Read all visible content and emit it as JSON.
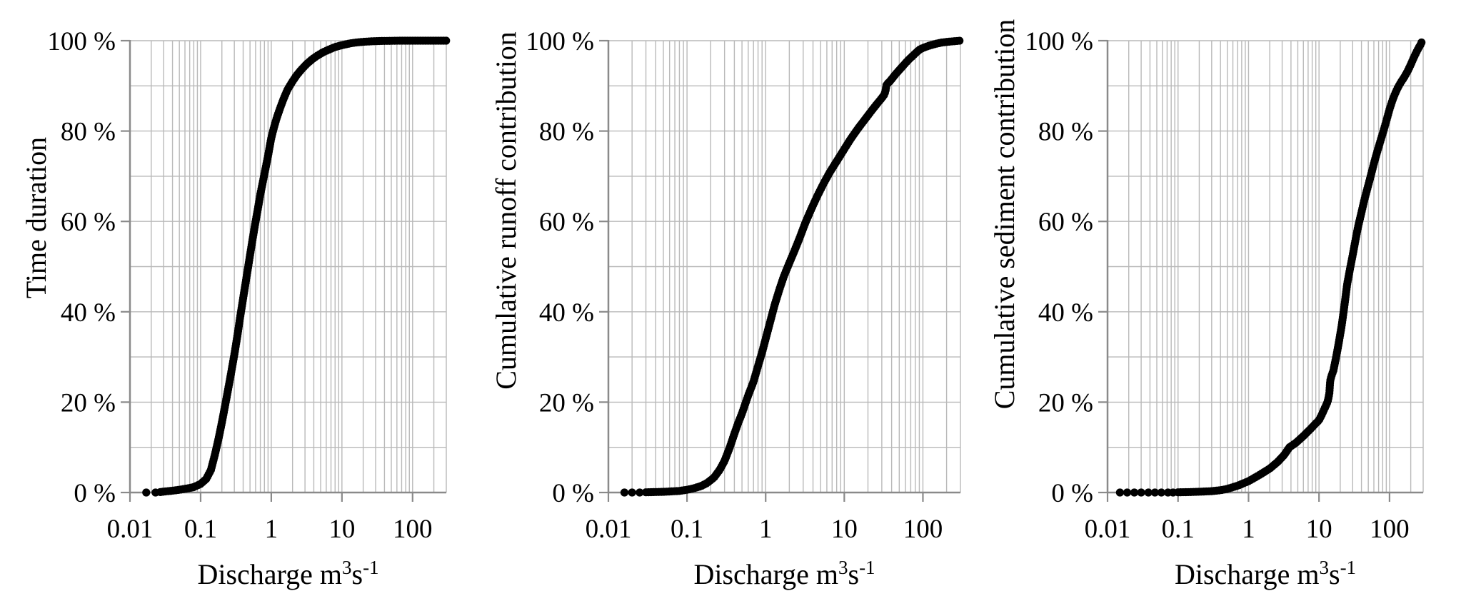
{
  "figure": {
    "background": "#ffffff",
    "text_color": "#000000",
    "grid_color": "#b9b9b9",
    "axis_color": "#8a8a8a",
    "point_color": "#000000"
  },
  "chart_data": [
    {
      "id": "time-duration",
      "type": "scatter",
      "title": "",
      "ylabel": "Time duration",
      "xlabel_parts": [
        {
          "t": "Discharge m"
        },
        {
          "t": "3",
          "sup": true
        },
        {
          "t": "s"
        },
        {
          "t": "-1",
          "sup": true
        }
      ],
      "x_scale": "log",
      "x_range": [
        0.01,
        300
      ],
      "y_range": [
        0,
        100
      ],
      "grid": "minor-log-x and 10%-horizontal, light gray",
      "legend": "none",
      "marker": "filled-black-circle",
      "x_ticks": [
        {
          "label": "0.01",
          "value": 0.01
        },
        {
          "label": "0.1",
          "value": 0.1
        },
        {
          "label": "1",
          "value": 1
        },
        {
          "label": "10",
          "value": 10
        },
        {
          "label": "100",
          "value": 100
        }
      ],
      "y_ticks": [
        {
          "label": "0 %",
          "value": 0
        },
        {
          "label": "20 %",
          "value": 20
        },
        {
          "label": "40 %",
          "value": 40
        },
        {
          "label": "60 %",
          "value": 60
        },
        {
          "label": "80 %",
          "value": 80
        },
        {
          "label": "100 %",
          "value": 100
        }
      ],
      "lead_in_dots": [
        0.017,
        0.023
      ],
      "points": [
        [
          0.027,
          0.1
        ],
        [
          0.03,
          0.2
        ],
        [
          0.04,
          0.4
        ],
        [
          0.05,
          0.6
        ],
        [
          0.065,
          0.9
        ],
        [
          0.08,
          1.2
        ],
        [
          0.1,
          1.9
        ],
        [
          0.12,
          3
        ],
        [
          0.14,
          5
        ],
        [
          0.16,
          8.5
        ],
        [
          0.18,
          12
        ],
        [
          0.2,
          15.5
        ],
        [
          0.23,
          20.5
        ],
        [
          0.26,
          25
        ],
        [
          0.3,
          30.5
        ],
        [
          0.33,
          34.5
        ],
        [
          0.36,
          38.5
        ],
        [
          0.4,
          43
        ],
        [
          0.45,
          48
        ],
        [
          0.5,
          52.5
        ],
        [
          0.55,
          56.5
        ],
        [
          0.6,
          60
        ],
        [
          0.65,
          63
        ],
        [
          0.7,
          66
        ],
        [
          0.8,
          70.5
        ],
        [
          0.9,
          74.5
        ],
        [
          1.0,
          78.5
        ],
        [
          1.1,
          81
        ],
        [
          1.2,
          83
        ],
        [
          1.35,
          85.3
        ],
        [
          1.5,
          87.2
        ],
        [
          1.7,
          89.2
        ],
        [
          2.0,
          91
        ],
        [
          2.3,
          92.4
        ],
        [
          2.7,
          93.7
        ],
        [
          3.2,
          94.9
        ],
        [
          3.8,
          95.9
        ],
        [
          4.5,
          96.7
        ],
        [
          5.5,
          97.5
        ],
        [
          6.5,
          98
        ],
        [
          8,
          98.6
        ],
        [
          10,
          99
        ],
        [
          13,
          99.4
        ],
        [
          16,
          99.6
        ],
        [
          20,
          99.75
        ],
        [
          27,
          99.87
        ],
        [
          35,
          99.93
        ],
        [
          50,
          99.97
        ],
        [
          70,
          100
        ],
        [
          100,
          100
        ],
        [
          150,
          100
        ],
        [
          210,
          100
        ],
        [
          300,
          100
        ]
      ]
    },
    {
      "id": "cumulative-runoff",
      "type": "scatter",
      "title": "",
      "ylabel": "Cumulative runoff contribution",
      "xlabel_parts": [
        {
          "t": "Discharge m"
        },
        {
          "t": "3",
          "sup": true
        },
        {
          "t": "s"
        },
        {
          "t": "-1",
          "sup": true
        }
      ],
      "x_scale": "log",
      "x_range": [
        0.01,
        300
      ],
      "y_range": [
        0,
        100
      ],
      "grid": "minor-log-x and 10%-horizontal, light gray",
      "legend": "none",
      "marker": "filled-black-circle",
      "x_ticks": [
        {
          "label": "0.01",
          "value": 0.01
        },
        {
          "label": "0.1",
          "value": 0.1
        },
        {
          "label": "1",
          "value": 1
        },
        {
          "label": "10",
          "value": 10
        },
        {
          "label": "100",
          "value": 100
        }
      ],
      "y_ticks": [
        {
          "label": "0 %",
          "value": 0
        },
        {
          "label": "20 %",
          "value": 20
        },
        {
          "label": "40 %",
          "value": 40
        },
        {
          "label": "60 %",
          "value": 60
        },
        {
          "label": "80 %",
          "value": 80
        },
        {
          "label": "100 %",
          "value": 100
        }
      ],
      "lead_in_dots": [
        0.016,
        0.02,
        0.025
      ],
      "points": [
        [
          0.03,
          0.05
        ],
        [
          0.05,
          0.15
        ],
        [
          0.08,
          0.35
        ],
        [
          0.1,
          0.6
        ],
        [
          0.12,
          0.9
        ],
        [
          0.15,
          1.4
        ],
        [
          0.18,
          2.1
        ],
        [
          0.22,
          3.3
        ],
        [
          0.26,
          5
        ],
        [
          0.3,
          7
        ],
        [
          0.35,
          10
        ],
        [
          0.4,
          13
        ],
        [
          0.45,
          15.5
        ],
        [
          0.5,
          17.5
        ],
        [
          0.6,
          21.5
        ],
        [
          0.7,
          24.5
        ],
        [
          0.8,
          28
        ],
        [
          0.9,
          31
        ],
        [
          1.0,
          34
        ],
        [
          1.15,
          38
        ],
        [
          1.3,
          41.5
        ],
        [
          1.5,
          45
        ],
        [
          1.7,
          47.8
        ],
        [
          2.0,
          50.8
        ],
        [
          2.3,
          53.3
        ],
        [
          2.7,
          56.3
        ],
        [
          3.2,
          59.7
        ],
        [
          3.8,
          62.7
        ],
        [
          4.5,
          65.5
        ],
        [
          5.5,
          68.5
        ],
        [
          6.5,
          70.8
        ],
        [
          8,
          73.3
        ],
        [
          10,
          76
        ],
        [
          12,
          78.2
        ],
        [
          15,
          80.6
        ],
        [
          18,
          82.4
        ],
        [
          22,
          84.4
        ],
        [
          26,
          86
        ],
        [
          30,
          87.3
        ],
        [
          33,
          88.3
        ],
        [
          34.5,
          90.3
        ],
        [
          38,
          91
        ],
        [
          45,
          92.6
        ],
        [
          55,
          94.3
        ],
        [
          65,
          95.7
        ],
        [
          78,
          97
        ],
        [
          90,
          98
        ],
        [
          100,
          98.4
        ],
        [
          120,
          98.9
        ],
        [
          145,
          99.3
        ],
        [
          175,
          99.6
        ],
        [
          220,
          99.8
        ],
        [
          260,
          99.9
        ],
        [
          295,
          100
        ]
      ]
    },
    {
      "id": "cumulative-sediment",
      "type": "scatter",
      "title": "",
      "ylabel": "Cumulative sediment contribution",
      "xlabel_parts": [
        {
          "t": "Discharge m"
        },
        {
          "t": "3",
          "sup": true
        },
        {
          "t": "s"
        },
        {
          "t": "-1",
          "sup": true
        }
      ],
      "x_scale": "log",
      "x_range": [
        0.01,
        300
      ],
      "y_range": [
        0,
        100
      ],
      "grid": "minor-log-x and 10%-horizontal, light gray",
      "legend": "none",
      "marker": "filled-black-circle",
      "x_ticks": [
        {
          "label": "0.01",
          "value": 0.01
        },
        {
          "label": "0.1",
          "value": 0.1
        },
        {
          "label": "1",
          "value": 1
        },
        {
          "label": "10",
          "value": 10
        },
        {
          "label": "100",
          "value": 100
        }
      ],
      "y_ticks": [
        {
          "label": "0 %",
          "value": 0
        },
        {
          "label": "20 %",
          "value": 20
        },
        {
          "label": "40 %",
          "value": 40
        },
        {
          "label": "60 %",
          "value": 60
        },
        {
          "label": "80 %",
          "value": 80
        },
        {
          "label": "100 %",
          "value": 100
        }
      ],
      "lead_in_dots": [
        0.015,
        0.019,
        0.024,
        0.03,
        0.038,
        0.047,
        0.058,
        0.072,
        0.085
      ],
      "points": [
        [
          0.1,
          0.05
        ],
        [
          0.15,
          0.1
        ],
        [
          0.22,
          0.2
        ],
        [
          0.3,
          0.3
        ],
        [
          0.4,
          0.5
        ],
        [
          0.5,
          0.8
        ],
        [
          0.7,
          1.5
        ],
        [
          1.0,
          2.5
        ],
        [
          1.4,
          3.8
        ],
        [
          2.0,
          5.3
        ],
        [
          2.6,
          6.8
        ],
        [
          3.2,
          8.3
        ],
        [
          3.8,
          10
        ],
        [
          4.7,
          11
        ],
        [
          6,
          12.5
        ],
        [
          7.5,
          14
        ],
        [
          9,
          15.3
        ],
        [
          10,
          16
        ],
        [
          11,
          17.3
        ],
        [
          12,
          18.6
        ],
        [
          13.2,
          20
        ],
        [
          14,
          21.8
        ],
        [
          14.2,
          24.3
        ],
        [
          15,
          25.8
        ],
        [
          16,
          27
        ],
        [
          17.5,
          30
        ],
        [
          19,
          33
        ],
        [
          21,
          37
        ],
        [
          23,
          41.5
        ],
        [
          25,
          46
        ],
        [
          27.5,
          49.5
        ],
        [
          30,
          52.5
        ],
        [
          33,
          56
        ],
        [
          36,
          59
        ],
        [
          40,
          62
        ],
        [
          44,
          64.8
        ],
        [
          48,
          67
        ],
        [
          54,
          70
        ],
        [
          60,
          72.8
        ],
        [
          68,
          75.8
        ],
        [
          75,
          78
        ],
        [
          82,
          80
        ],
        [
          90,
          82.2
        ],
        [
          100,
          84.8
        ],
        [
          110,
          86.8
        ],
        [
          120,
          88.3
        ],
        [
          132,
          89.7
        ],
        [
          145,
          90.8
        ],
        [
          160,
          91.8
        ],
        [
          180,
          93.2
        ],
        [
          200,
          94.7
        ],
        [
          220,
          96.2
        ],
        [
          245,
          97.7
        ],
        [
          265,
          98.7
        ],
        [
          280,
          99.3
        ],
        [
          290,
          100
        ]
      ]
    }
  ]
}
